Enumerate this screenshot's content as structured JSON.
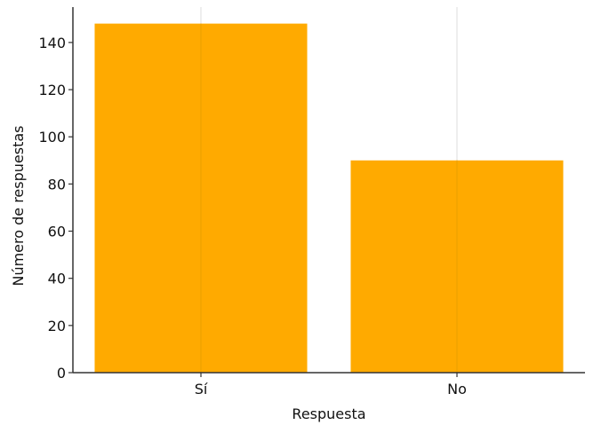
{
  "chart_data": {
    "type": "bar",
    "categories": [
      "Sí",
      "No"
    ],
    "values": [
      148,
      90
    ],
    "xlabel": "Respuesta",
    "ylabel": "Número de respuestas",
    "ylim": [
      0,
      155
    ],
    "yticks": [
      0,
      20,
      40,
      60,
      80,
      100,
      120,
      140
    ],
    "grid": true,
    "bar_color": "#FFAA00",
    "axis_color": "#333333",
    "grid_color": "#DDDDDD"
  }
}
